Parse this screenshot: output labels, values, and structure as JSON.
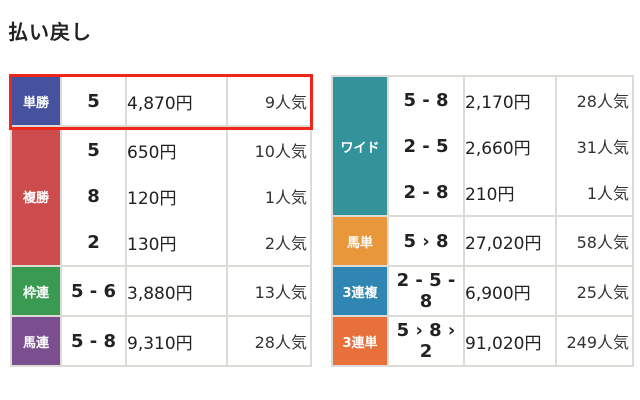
{
  "title": "払い戻し",
  "colors": {
    "highlight": "#f0261b",
    "win": "#4652a0",
    "place": "#cc4b4c",
    "bracket_quinella": "#3a9a52",
    "quinella": "#7b4f8f",
    "wide": "#34939a",
    "exacta": "#e8983a",
    "trio": "#2f86b2",
    "trifecta": "#e8703a"
  },
  "left": [
    {
      "label": "単勝",
      "color": "#4652a0",
      "rows": [
        {
          "combo": "5",
          "payout": "4,870円",
          "pop": "9人気"
        }
      ]
    },
    {
      "label": "複勝",
      "color": "#cc4b4c",
      "rows": [
        {
          "combo": "5",
          "payout": "650円",
          "pop": "10人気"
        },
        {
          "combo": "8",
          "payout": "120円",
          "pop": "1人気"
        },
        {
          "combo": "2",
          "payout": "130円",
          "pop": "2人気"
        }
      ]
    },
    {
      "label": "枠連",
      "color": "#3a9a52",
      "rows": [
        {
          "combo": "5 - 6",
          "payout": "3,880円",
          "pop": "13人気"
        }
      ]
    },
    {
      "label": "馬連",
      "color": "#7b4f8f",
      "rows": [
        {
          "combo": "5 - 8",
          "payout": "9,310円",
          "pop": "28人気"
        }
      ]
    }
  ],
  "right": [
    {
      "label": "ワイド",
      "color": "#34939a",
      "rows": [
        {
          "combo": "5 - 8",
          "payout": "2,170円",
          "pop": "28人気"
        },
        {
          "combo": "2 - 5",
          "payout": "2,660円",
          "pop": "31人気"
        },
        {
          "combo": "2 - 8",
          "payout": "210円",
          "pop": "1人気"
        }
      ]
    },
    {
      "label": "馬単",
      "color": "#e8983a",
      "rows": [
        {
          "combo": "5 › 8",
          "payout": "27,020円",
          "pop": "58人気"
        }
      ]
    },
    {
      "label": "3連複",
      "color": "#2f86b2",
      "rows": [
        {
          "combo": "2 - 5 - 8",
          "payout": "6,900円",
          "pop": "25人気"
        }
      ]
    },
    {
      "label": "3連単",
      "color": "#e8703a",
      "rows": [
        {
          "combo": "5 › 8 › 2",
          "payout": "91,020円",
          "pop": "249人気"
        }
      ]
    }
  ]
}
